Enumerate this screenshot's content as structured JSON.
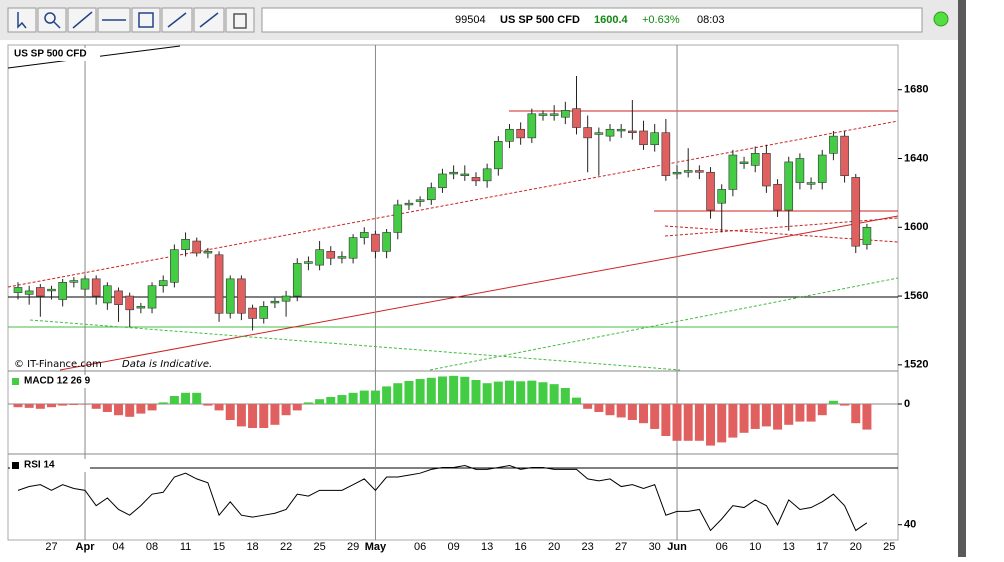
{
  "ticker": {
    "code": "99504",
    "name": "US SP 500 CFD",
    "price": 1600.4,
    "change": "+0.63%",
    "time": "08:03"
  },
  "credit": "© IT-Finance.com",
  "disclaimer": "Data is Indicative.",
  "chart_data": [
    {
      "type": "candlestick",
      "title": "US SP 500 CFD",
      "categories": [
        null,
        null,
        null,
        "27",
        null,
        null,
        "Apr",
        null,
        null,
        "04",
        null,
        null,
        "08",
        null,
        null,
        "11",
        null,
        null,
        "15",
        null,
        null,
        "18",
        null,
        null,
        "22",
        null,
        null,
        "25",
        null,
        null,
        "29",
        null,
        "May",
        null,
        null,
        null,
        "06",
        null,
        null,
        "09",
        null,
        null,
        "13",
        null,
        null,
        "16",
        null,
        null,
        "20",
        null,
        null,
        "23",
        null,
        null,
        "27",
        null,
        null,
        "30",
        null,
        "Jun",
        null,
        null,
        null,
        "06",
        null,
        null,
        "10",
        null,
        null,
        "13",
        null,
        null,
        "17",
        null,
        null,
        "20",
        null,
        null,
        "25"
      ],
      "open": [
        1562,
        1561,
        1565,
        1563,
        1558,
        1568,
        1564,
        1570,
        1556,
        1563,
        1560,
        1553,
        1553,
        1566,
        1568,
        1587,
        1592,
        1585,
        1584,
        1550,
        1570,
        1553,
        1547,
        1556,
        1557,
        1560,
        1579,
        1578,
        1586,
        1582,
        1582,
        1594,
        1596,
        1586,
        1597,
        1613,
        1615,
        1616,
        1623,
        1631,
        1630,
        1629,
        1627,
        1634,
        1650,
        1657,
        1652,
        1665,
        1665,
        1664,
        1669,
        1658,
        1654,
        1653,
        1656,
        1656,
        1656,
        1648,
        1655,
        1631,
        1632,
        1633,
        1632,
        1614,
        1622,
        1637,
        1636,
        1643,
        1625,
        1610,
        1626,
        1625,
        1626,
        1643,
        1653,
        1629,
        1590,
        null,
        null
      ],
      "high": [
        1568,
        1566,
        1567,
        1566,
        1570,
        1571,
        1572,
        1572,
        1568,
        1565,
        1562,
        1556,
        1568,
        1572,
        1590,
        1597,
        1594,
        1588,
        1586,
        1572,
        1572,
        1555,
        1557,
        1559,
        1563,
        1582,
        1583,
        1592,
        1589,
        1586,
        1596,
        1600,
        1598,
        1599,
        1616,
        1616,
        1618,
        1626,
        1634,
        1636,
        1636,
        1632,
        1637,
        1653,
        1660,
        1661,
        1669,
        1668,
        1671,
        1673,
        1688,
        1665,
        1658,
        1660,
        1660,
        1674,
        1662,
        1660,
        1663,
        1636,
        1646,
        1636,
        1635,
        1625,
        1645,
        1641,
        1647,
        1648,
        1628,
        1641,
        1643,
        1629,
        1645,
        1656,
        1656,
        1631,
        1602,
        null,
        null
      ],
      "low": [
        1558,
        1555,
        1548,
        1558,
        1554,
        1565,
        1560,
        1555,
        1552,
        1545,
        1542,
        1550,
        1550,
        1562,
        1565,
        1583,
        1583,
        1582,
        1545,
        1547,
        1546,
        1540,
        1544,
        1553,
        1548,
        1557,
        1575,
        1575,
        1578,
        1579,
        1579,
        1590,
        1582,
        1582,
        1593,
        1610,
        1612,
        1613,
        1620,
        1628,
        1627,
        1624,
        1623,
        1630,
        1646,
        1648,
        1649,
        1662,
        1662,
        1660,
        1654,
        1632,
        1630,
        1650,
        1652,
        1651,
        1645,
        1644,
        1627,
        1628,
        1629,
        1628,
        1605,
        1597,
        1618,
        1634,
        1632,
        1620,
        1606,
        1598,
        1622,
        1622,
        1622,
        1639,
        1626,
        1585,
        1587,
        null,
        null
      ],
      "close": [
        1565,
        1563,
        1560,
        1564,
        1568,
        1569,
        1570,
        1560,
        1566,
        1555,
        1552,
        1554,
        1566,
        1569,
        1587,
        1593,
        1585,
        1586,
        1550,
        1570,
        1550,
        1547,
        1554,
        1557,
        1560,
        1579,
        1580,
        1587,
        1582,
        1583,
        1594,
        1597,
        1586,
        1597,
        1613,
        1614,
        1616,
        1623,
        1631,
        1632,
        1631,
        1627,
        1634,
        1650,
        1657,
        1652,
        1666,
        1666,
        1666,
        1668,
        1658,
        1652,
        1655,
        1657,
        1657,
        1655,
        1648,
        1655,
        1630,
        1632,
        1633,
        1632,
        1610,
        1622,
        1642,
        1638,
        1643,
        1624,
        1610,
        1638,
        1640,
        1626,
        1642,
        1653,
        1630,
        1589,
        1600,
        null,
        null
      ],
      "ylim": [
        1517,
        1706
      ],
      "yticks": [
        1520,
        1560,
        1600,
        1640,
        1680
      ],
      "up_color": "#44cc44",
      "down_color": "#e06060"
    },
    {
      "type": "bar",
      "title": "MACD 12 26 9",
      "values": [
        -1,
        -1.2,
        -1.5,
        -1,
        -0.5,
        -0.3,
        -0.2,
        -1.5,
        -2.5,
        -3.5,
        -4,
        -3,
        -2,
        0.5,
        2.5,
        3.5,
        3.5,
        -0.5,
        -2,
        -5,
        -7,
        -7.5,
        -7.5,
        -6.5,
        -3.5,
        -2,
        0.5,
        1.5,
        2.2,
        2.8,
        3.5,
        4.2,
        4.2,
        5.5,
        6.5,
        7.2,
        7.8,
        8.2,
        8.6,
        8.8,
        8.5,
        7.5,
        6.5,
        7,
        7.3,
        7.1,
        7.3,
        6.8,
        6.2,
        5,
        2,
        -1.5,
        -2.5,
        -3.5,
        -4.2,
        -5,
        -6,
        -7.8,
        -10,
        -11.5,
        -11.5,
        -11.5,
        -13,
        -12,
        -10.5,
        -9,
        -7.8,
        -7,
        -8,
        -6.5,
        -5.5,
        -5.5,
        -3.5,
        1,
        -0.5,
        -6,
        -8,
        null,
        null
      ],
      "ylim": [
        -15,
        10
      ],
      "yticks": [
        0
      ],
      "up_color": "#44cc44",
      "down_color": "#e06060"
    },
    {
      "type": "line",
      "title": "RSI 14",
      "values": [
        58,
        60,
        61,
        58,
        61,
        59,
        58,
        50,
        54,
        48,
        45,
        50,
        56,
        57,
        65,
        67,
        64,
        62,
        45,
        52,
        45,
        44,
        45,
        46,
        48,
        56,
        55,
        58,
        58,
        58,
        61,
        64,
        58,
        65,
        65,
        66,
        67,
        69,
        70,
        70,
        71,
        69,
        69,
        70,
        71,
        69,
        70,
        70,
        69,
        69,
        69,
        64,
        63,
        64,
        60,
        61,
        59,
        61,
        45,
        47,
        47,
        48,
        37,
        43,
        50,
        49,
        53,
        50,
        40,
        53,
        48,
        49,
        52,
        56,
        50,
        37,
        41,
        null,
        null
      ],
      "ylim": [
        32,
        76
      ],
      "yticks": [
        40
      ],
      "color": "#000000"
    }
  ]
}
